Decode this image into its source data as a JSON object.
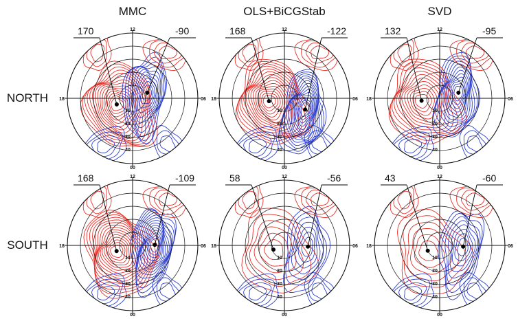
{
  "chart_data": {
    "type": "polar-contour",
    "columns": [
      "MMC",
      "OLS+BiCGStab",
      "SVD"
    ],
    "rows": [
      "NORTH",
      "SOUTH"
    ],
    "mlt_labels": [
      "12",
      "06",
      "00",
      "18"
    ],
    "latitude_labels": [
      "10",
      "20",
      "30",
      "40"
    ],
    "colors": {
      "positive": "#e8302a",
      "negative": "#2d3fd0",
      "axes": "#111111"
    },
    "panels": [
      {
        "row": "NORTH",
        "method": "MMC",
        "max_label": "170",
        "min_label": "-90",
        "max_pos": {
          "mlt": 19.4,
          "colat": 13
        },
        "min_pos": {
          "mlt": 7.4,
          "colat": 12
        }
      },
      {
        "row": "NORTH",
        "method": "OLS+BiCGStab",
        "max_label": "168",
        "min_label": "-122",
        "max_pos": {
          "mlt": 18.7,
          "colat": 12
        },
        "min_pos": {
          "mlt": 4.1,
          "colat": 18
        }
      },
      {
        "row": "NORTH",
        "method": "SVD",
        "max_label": "132",
        "min_label": "-95",
        "max_pos": {
          "mlt": 18.5,
          "colat": 14
        },
        "min_pos": {
          "mlt": 7.1,
          "colat": 15
        }
      },
      {
        "row": "SOUTH",
        "method": "MMC",
        "max_label": "168",
        "min_label": "-109",
        "max_pos": {
          "mlt": 19.3,
          "colat": 13
        },
        "min_pos": {
          "mlt": 6.1,
          "colat": 17
        }
      },
      {
        "row": "SOUTH",
        "method": "OLS+BiCGStab",
        "max_label": "58",
        "min_label": "-56",
        "max_pos": {
          "mlt": 19.4,
          "colat": 9
        },
        "min_pos": {
          "mlt": 5.8,
          "colat": 18
        }
      },
      {
        "row": "SOUTH",
        "method": "SVD",
        "max_label": "43",
        "min_label": "-60",
        "max_pos": {
          "mlt": 19.6,
          "colat": 10
        },
        "min_pos": {
          "mlt": 5.8,
          "colat": 18
        }
      }
    ]
  }
}
